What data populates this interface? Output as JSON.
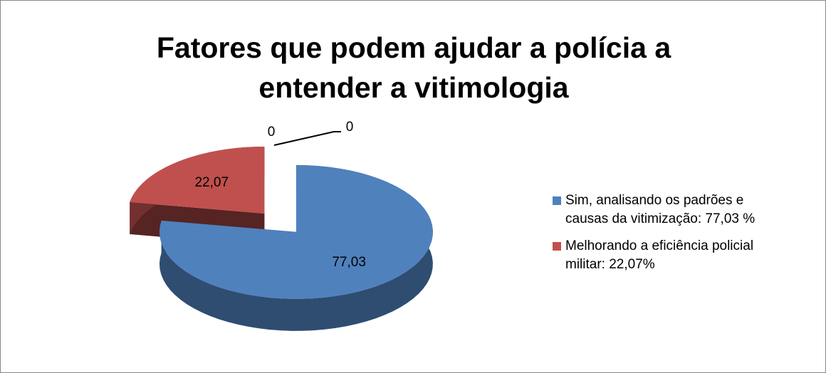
{
  "chart_data": {
    "type": "pie3d",
    "title": "Fatores que podem ajudar a polícia a entender a vitimologia",
    "categories": [
      "Sim, analisando os padrões e causas da vitimização: 77,03 %",
      "Melhorando a eficiência policial militar: 22,07%",
      null,
      null
    ],
    "values": [
      77.03,
      22.07,
      0,
      0
    ],
    "value_labels": [
      "77,03",
      "22,07",
      "0",
      "0"
    ],
    "colors": [
      "#4f81bd",
      "#c0504d",
      "#9bbb59",
      "#8064a2"
    ],
    "legend": "right"
  }
}
